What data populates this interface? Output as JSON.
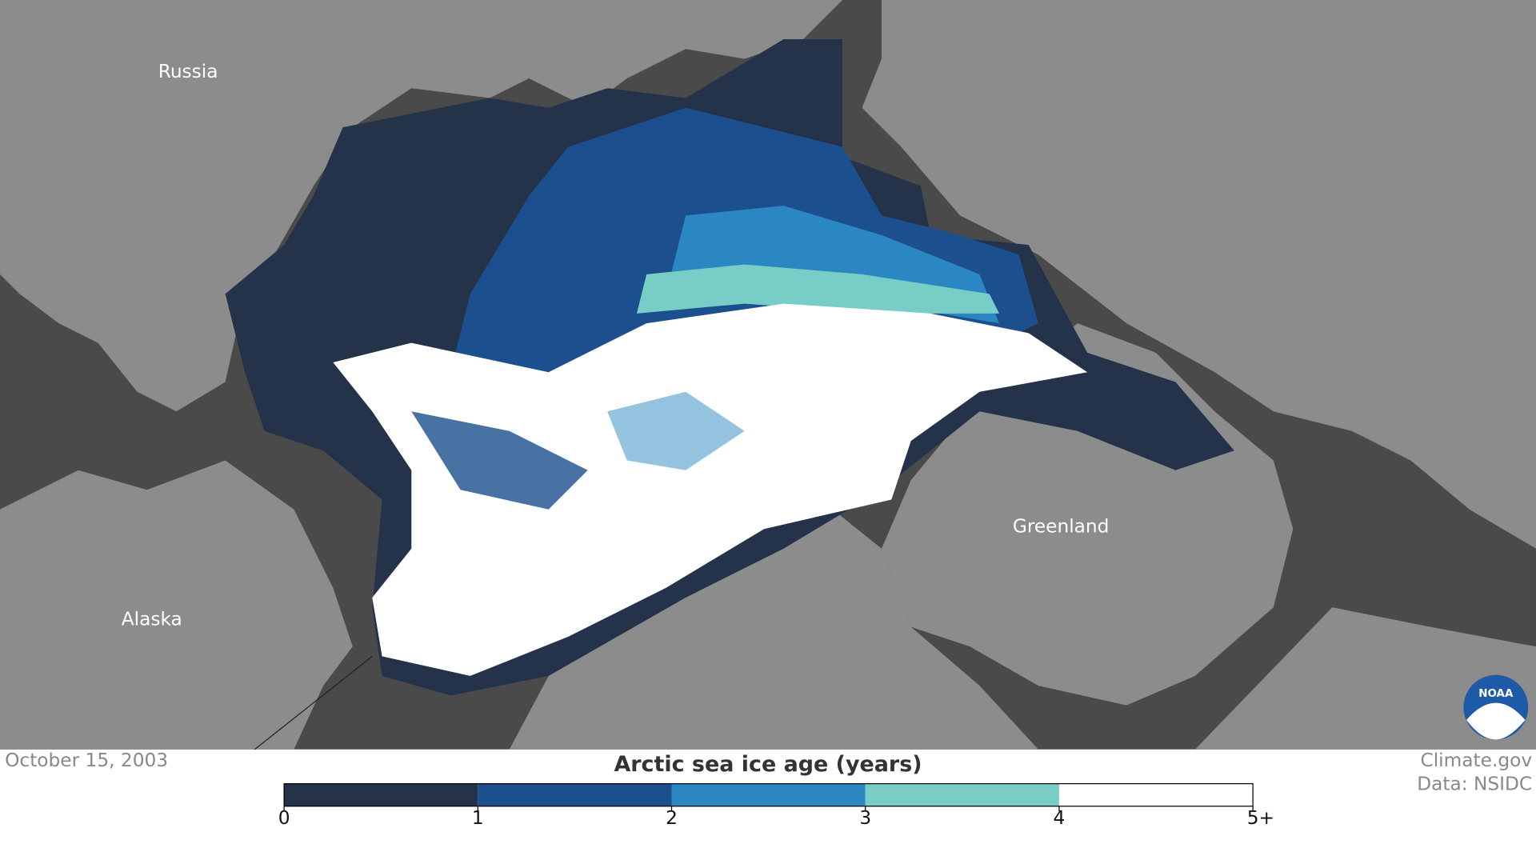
{
  "map": {
    "labels": [
      "Russia",
      "Alaska",
      "Greenland"
    ]
  },
  "date": "October 15, 2003",
  "legend": {
    "title": "Arctic sea ice age (years)",
    "colors": [
      "#243349",
      "#1b4f8d",
      "#2a87c1",
      "#78cdc6",
      "#ffffff"
    ],
    "ticks": [
      0,
      1,
      2,
      3,
      4,
      {
        "value": 5,
        "label": "5+"
      }
    ]
  },
  "credits": [
    "Climate.gov",
    "Data: NSIDC"
  ],
  "logo": "NOAA"
}
